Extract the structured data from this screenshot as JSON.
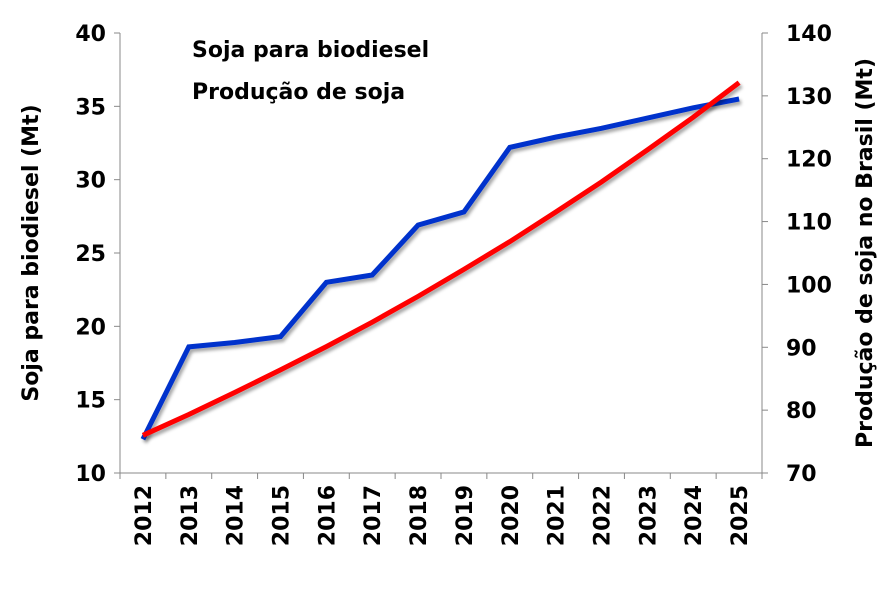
{
  "chart_data": {
    "type": "line",
    "title": "",
    "categories": [
      "2012",
      "2013",
      "2014",
      "2015",
      "2016",
      "2017",
      "2018",
      "2019",
      "2020",
      "2021",
      "2022",
      "2023",
      "2024",
      "2025"
    ],
    "series": [
      {
        "name": "Soja para biodiesel",
        "axis": "left",
        "color": "#0033cc",
        "values": [
          12.3,
          18.6,
          18.9,
          19.3,
          23.0,
          23.5,
          26.9,
          27.8,
          32.2,
          32.9,
          33.5,
          34.2,
          34.9,
          35.5
        ]
      },
      {
        "name": "Produção de soja",
        "axis": "right",
        "color": "#ff0000",
        "values": [
          76.0,
          79.3,
          82.8,
          86.4,
          90.1,
          94.0,
          98.1,
          102.4,
          106.8,
          111.5,
          116.3,
          121.4,
          126.6,
          132.1
        ]
      }
    ],
    "ylabel": "Soja para biodiesel (Mt)",
    "y2label": "Produção de soja no Brasil (Mt)",
    "ylim": [
      10,
      40
    ],
    "yticks": [
      "10",
      "15",
      "20",
      "25",
      "30",
      "35",
      "40"
    ],
    "y2lim": [
      70,
      140
    ],
    "y2ticks": [
      "70",
      "80",
      "90",
      "100",
      "110",
      "120",
      "130",
      "140"
    ],
    "grid": false,
    "legend_position": "top-left"
  }
}
